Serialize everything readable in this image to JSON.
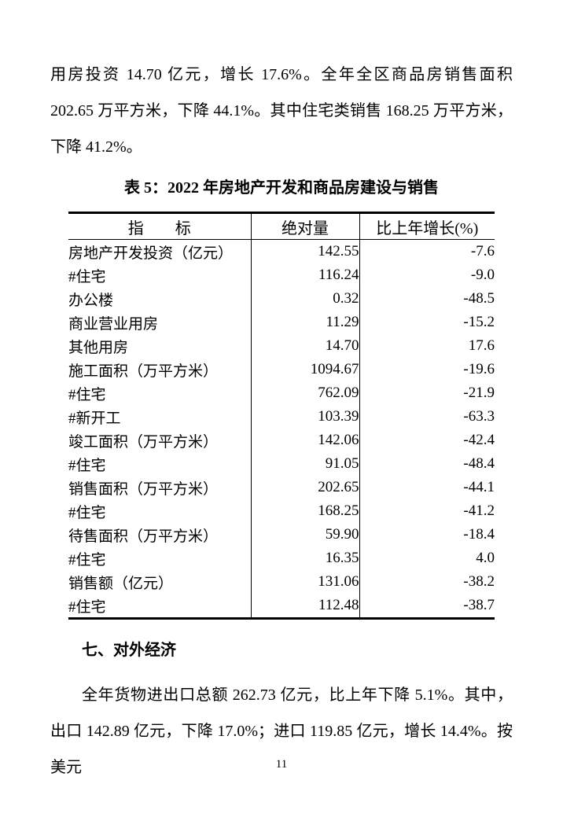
{
  "page": {
    "number": "11"
  },
  "paragraph_top": {
    "text": "用房投资 14.70 亿元，增长 17.6%。全年全区商品房销售面积 202.65 万平方米，下降 44.1%。其中住宅类销售 168.25 万平方米，下降 41.2%。"
  },
  "table": {
    "title": "表 5：2022 年房地产开发和商品房建设与销售",
    "headers": [
      "指　　标",
      "绝对量",
      "比上年增长(%)"
    ],
    "rows": [
      {
        "indicator": "房地产开发投资（亿元）",
        "absolute": "142.55",
        "growth": "-7.6",
        "indent": 0
      },
      {
        "indicator": "#住宅",
        "absolute": "116.24",
        "growth": "-9.0",
        "indent": 1
      },
      {
        "indicator": "办公楼",
        "absolute": "0.32",
        "growth": "-48.5",
        "indent": 2
      },
      {
        "indicator": "商业营业用房",
        "absolute": "11.29",
        "growth": "-15.2",
        "indent": 2
      },
      {
        "indicator": "其他用房",
        "absolute": "14.70",
        "growth": "17.6",
        "indent": 2
      },
      {
        "indicator": "施工面积（万平方米）",
        "absolute": "1094.67",
        "growth": "-19.6",
        "indent": 0
      },
      {
        "indicator": "#住宅",
        "absolute": "762.09",
        "growth": "-21.9",
        "indent": 1
      },
      {
        "indicator": "#新开工",
        "absolute": "103.39",
        "growth": "-63.3",
        "indent": 1
      },
      {
        "indicator": "竣工面积（万平方米）",
        "absolute": "142.06",
        "growth": "-42.4",
        "indent": 0
      },
      {
        "indicator": "#住宅",
        "absolute": "91.05",
        "growth": "-48.4",
        "indent": 1
      },
      {
        "indicator": "销售面积（万平方米）",
        "absolute": "202.65",
        "growth": "-44.1",
        "indent": 0
      },
      {
        "indicator": "#住宅",
        "absolute": "168.25",
        "growth": "-41.2",
        "indent": 1
      },
      {
        "indicator": "待售面积（万平方米）",
        "absolute": "59.90",
        "growth": "-18.4",
        "indent": 0
      },
      {
        "indicator": "#住宅",
        "absolute": "16.35",
        "growth": "4.0",
        "indent": 1
      },
      {
        "indicator": "销售额（亿元）",
        "absolute": "131.06",
        "growth": "-38.2",
        "indent": 0
      },
      {
        "indicator": "#住宅",
        "absolute": "112.48",
        "growth": "-38.7",
        "indent": 1
      }
    ]
  },
  "section": {
    "heading": "七、对外经济"
  },
  "paragraph_bottom": {
    "text": "全年货物进出口总额 262.73 亿元，比上年下降 5.1%。其中，出口 142.89 亿元，下降 17.0%；进口 119.85 亿元，增长 14.4%。按美元"
  }
}
